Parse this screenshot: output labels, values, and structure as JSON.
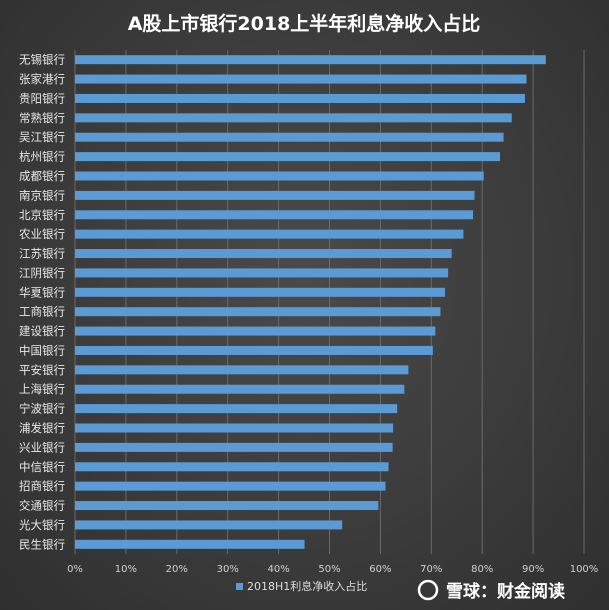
{
  "chart_data": {
    "type": "bar",
    "orientation": "horizontal",
    "title": "A股上市银行2018上半年利息净收入占比",
    "categories": [
      "无锡银行",
      "张家港行",
      "贵阳银行",
      "常熟银行",
      "吴江银行",
      "杭州银行",
      "成都银行",
      "南京银行",
      "北京银行",
      "农业银行",
      "江苏银行",
      "江阴银行",
      "华夏银行",
      "工商银行",
      "建设银行",
      "中国银行",
      "平安银行",
      "上海银行",
      "宁波银行",
      "浦发银行",
      "兴业银行",
      "中信银行",
      "招商银行",
      "交通银行",
      "光大银行",
      "民生银行"
    ],
    "series": [
      {
        "name": "2018H1利息净收入占比",
        "color": "#5b9bd5",
        "values": [
          92.5,
          88.7,
          88.4,
          85.8,
          84.2,
          83.5,
          80.3,
          78.5,
          78.2,
          76.3,
          74.0,
          73.3,
          72.7,
          71.8,
          70.8,
          70.3,
          65.5,
          64.7,
          63.3,
          62.5,
          62.4,
          61.6,
          61.0,
          59.6,
          52.5,
          45.1
        ]
      }
    ],
    "xlim": [
      0,
      100
    ],
    "x_ticks": [
      "0%",
      "10%",
      "20%",
      "30%",
      "40%",
      "50%",
      "60%",
      "70%",
      "80%",
      "90%",
      "100%"
    ],
    "grid": true,
    "legend_position": "bottom-left"
  },
  "watermark": {
    "text": "雪球：财金阅读"
  }
}
